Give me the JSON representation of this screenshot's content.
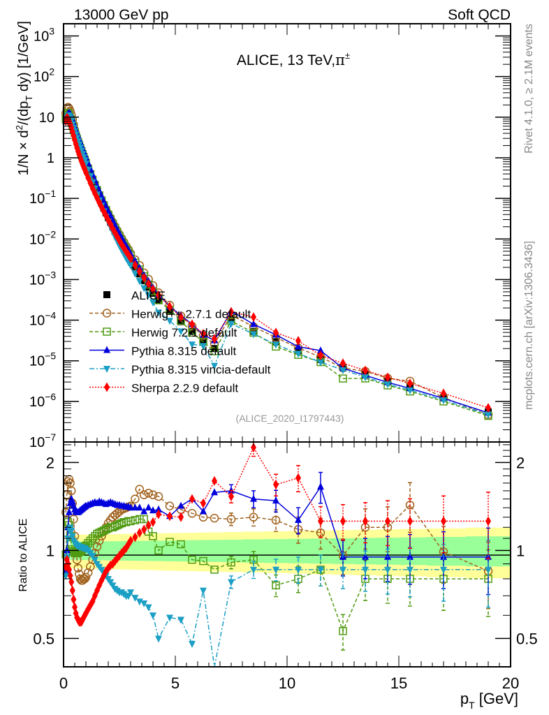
{
  "header": {
    "left": "13000 GeV pp",
    "right": "Soft QCD"
  },
  "side_labels": {
    "rivet": "Rivet 4.1.0, ≥ 2.1M events",
    "mcplots": "mcplots.cern.ch [arXiv:1306.3436]"
  },
  "chart_data": [
    {
      "type": "scatter",
      "panel": "main",
      "title": "ALICE, 13 TeV,π±",
      "title_main": "ALICE, 13 TeV,",
      "title_particle": "π",
      "title_sup": "±",
      "analysis_id": "(ALICE_2020_I1797443)",
      "xlabel": "p_T [GeV]",
      "ylabel": "1/N × d²/(dp_T dy) [1/GeV]",
      "yscale": "log",
      "xlim": [
        0,
        20
      ],
      "ylim": [
        1e-07,
        2000
      ],
      "x_ticks": [
        0,
        5,
        10,
        15,
        20
      ],
      "y_tick_labels": [
        "10^3",
        "10^2",
        "10",
        "1",
        "10^-1",
        "10^-2",
        "10^-3",
        "10^-4",
        "10^-5",
        "10^-6",
        "10^-7"
      ],
      "legend_position": "lower-left",
      "x": [
        0.1,
        0.15,
        0.2,
        0.25,
        0.3,
        0.35,
        0.4,
        0.45,
        0.5,
        0.55,
        0.6,
        0.65,
        0.7,
        0.75,
        0.8,
        0.85,
        0.9,
        0.95,
        1.0,
        1.1,
        1.2,
        1.3,
        1.4,
        1.5,
        1.6,
        1.7,
        1.8,
        1.9,
        2.0,
        2.1,
        2.2,
        2.3,
        2.4,
        2.5,
        2.6,
        2.7,
        2.8,
        2.9,
        3.0,
        3.2,
        3.4,
        3.6,
        3.8,
        4.0,
        4.25,
        4.75,
        5.25,
        5.75,
        6.25,
        6.75,
        7.5,
        8.5,
        9.5,
        10.5,
        11.5,
        12.5,
        13.5,
        14.5,
        15.5,
        17.0,
        19.0
      ],
      "series": [
        {
          "name": "ALICE",
          "color": "#000000",
          "marker": "square",
          "line": "none",
          "values": [
            9.2,
            10.5,
            10.2,
            9.3,
            8.2,
            7.1,
            6.0,
            5.1,
            4.3,
            3.6,
            3.0,
            2.5,
            2.1,
            1.75,
            1.46,
            1.22,
            1.02,
            0.86,
            0.72,
            0.51,
            0.365,
            0.263,
            0.191,
            0.14,
            0.103,
            0.077,
            0.058,
            0.044,
            0.0335,
            0.0258,
            0.0199,
            0.0155,
            0.0121,
            0.0095,
            0.0075,
            0.006,
            0.0048,
            0.0039,
            0.0031,
            0.00205,
            0.00138,
            0.00094,
            0.00065,
            0.00046,
            0.00031,
            0.000165,
            9.2e-05,
            5.3e-05,
            3.2e-05,
            2e-05,
            0.000105,
            5.3e-05,
            2.95e-05,
            1.75e-05,
            1.08e-05,
            6.9e-06,
            4.6e-06,
            3.1e-06,
            2.2e-06,
            1.25e-06,
            5.5e-07
          ]
        },
        {
          "name": "Herwig++ 2.7.1 default",
          "color": "#a0611c",
          "marker": "open-circle",
          "line": "dashed",
          "ratio": [
            1.35,
            1.55,
            1.72,
            1.75,
            1.7,
            1.6,
            1.45,
            1.28,
            1.12,
            1.0,
            0.93,
            0.87,
            0.83,
            0.8,
            0.79,
            0.79,
            0.8,
            0.8,
            0.81,
            0.84,
            0.88,
            0.93,
            0.98,
            1.03,
            1.08,
            1.12,
            1.16,
            1.2,
            1.24,
            1.27,
            1.3,
            1.32,
            1.34,
            1.36,
            1.38,
            1.39,
            1.4,
            1.41,
            1.42,
            1.5,
            1.62,
            1.55,
            1.57,
            1.55,
            1.53,
            1.42,
            1.38,
            1.34,
            1.3,
            1.29,
            1.28,
            1.3,
            1.27,
            1.18,
            1.15,
            0.96,
            1.2,
            1.2,
            1.43,
            0.99,
            0.85
          ]
        },
        {
          "name": "Herwig 7.2.1 default",
          "color": "#4f9a11",
          "marker": "open-square",
          "line": "dashed",
          "ratio": [
            0.97,
            1.15,
            1.25,
            1.22,
            1.12,
            1.05,
            1.01,
            0.99,
            0.98,
            0.98,
            0.98,
            0.98,
            0.99,
            0.99,
            1.0,
            1.01,
            1.02,
            1.03,
            1.04,
            1.06,
            1.08,
            1.1,
            1.12,
            1.14,
            1.15,
            1.16,
            1.17,
            1.18,
            1.19,
            1.2,
            1.2,
            1.21,
            1.22,
            1.23,
            1.24,
            1.25,
            1.25,
            1.26,
            1.26,
            1.27,
            1.28,
            1.28,
            1.16,
            1.12,
            1.0,
            1.07,
            1.05,
            0.93,
            0.92,
            0.86,
            0.91,
            0.93,
            0.76,
            0.8,
            0.86,
            0.53,
            0.8,
            0.8,
            0.8,
            0.8,
            0.8
          ]
        },
        {
          "name": "Pythia 8.315 default",
          "color": "#0000dd",
          "marker": "triangle-up",
          "line": "solid",
          "ratio": [
            0.85,
            1.0,
            1.2,
            1.35,
            1.45,
            1.5,
            1.47,
            1.42,
            1.38,
            1.36,
            1.35,
            1.35,
            1.36,
            1.37,
            1.38,
            1.39,
            1.4,
            1.41,
            1.42,
            1.43,
            1.44,
            1.45,
            1.46,
            1.45,
            1.47,
            1.46,
            1.45,
            1.44,
            1.45,
            1.46,
            1.45,
            1.44,
            1.43,
            1.43,
            1.42,
            1.42,
            1.41,
            1.41,
            1.4,
            1.4,
            1.4,
            1.36,
            1.4,
            1.37,
            1.38,
            1.31,
            1.42,
            1.5,
            1.36,
            1.58,
            1.6,
            1.5,
            1.48,
            1.27,
            1.65,
            0.95,
            0.95,
            0.95,
            0.95,
            0.95,
            0.95
          ]
        },
        {
          "name": "Pythia 8.315 vincia-default",
          "color": "#1b9fc5",
          "marker": "triangle-down",
          "line": "dash-dot",
          "ratio": [
            0.82,
            0.95,
            1.1,
            1.18,
            1.2,
            1.17,
            1.12,
            1.08,
            1.06,
            1.05,
            1.04,
            1.04,
            1.03,
            1.03,
            1.03,
            1.02,
            1.02,
            1.02,
            1.01,
            1.0,
            0.98,
            0.96,
            0.93,
            0.9,
            0.88,
            0.86,
            0.84,
            0.82,
            0.8,
            0.78,
            0.76,
            0.74,
            0.73,
            0.72,
            0.72,
            0.71,
            0.7,
            0.7,
            0.72,
            0.69,
            0.67,
            0.66,
            0.64,
            0.6,
            0.5,
            0.59,
            0.58,
            0.48,
            0.73,
            0.38,
            0.78,
            0.86,
            0.86,
            0.86,
            0.86,
            0.86,
            0.86,
            0.86,
            0.86,
            0.86,
            0.86
          ]
        },
        {
          "name": "Sherpa 2.2.9 default",
          "color": "#ff0000",
          "marker": "diamond",
          "line": "dotted",
          "ratio": [
            0.88,
            0.93,
            0.9,
            0.86,
            0.82,
            0.78,
            0.73,
            0.68,
            0.64,
            0.61,
            0.59,
            0.58,
            0.57,
            0.57,
            0.57,
            0.58,
            0.59,
            0.6,
            0.61,
            0.63,
            0.65,
            0.67,
            0.7,
            0.73,
            0.76,
            0.79,
            0.82,
            0.85,
            0.87,
            0.89,
            0.9,
            0.92,
            0.94,
            0.96,
            0.98,
            1.0,
            1.02,
            1.05,
            1.08,
            1.11,
            1.15,
            1.18,
            1.22,
            1.25,
            1.33,
            1.31,
            1.3,
            1.5,
            1.45,
            1.73,
            1.53,
            2.25,
            1.68,
            1.77,
            1.26,
            1.26,
            1.26,
            1.26,
            1.26,
            1.26,
            1.26
          ]
        }
      ]
    },
    {
      "type": "scatter",
      "panel": "ratio",
      "ylabel": "Ratio to ALICE",
      "xlabel": "p_T [GeV]",
      "yscale": "log",
      "xlim": [
        0,
        20
      ],
      "ylim": [
        0.4,
        2.35
      ],
      "y_ticks": [
        0.5,
        1,
        2
      ],
      "y_tick_labels": [
        "0.5",
        "1",
        "2"
      ],
      "x_ticks": [
        0,
        5,
        10,
        15,
        20
      ],
      "x_tick_labels": [
        "0",
        "5",
        "10",
        "15",
        "20"
      ],
      "reference_line": 1,
      "bands": [
        {
          "name": "stat+syst outer",
          "color": "#ffff99",
          "halfwidth_at_low_pt": 0.13,
          "halfwidth_at_high_pt": 0.2
        },
        {
          "name": "stat inner",
          "color": "#99ff99",
          "halfwidth_at_low_pt": 0.07,
          "halfwidth_at_high_pt": 0.12
        }
      ],
      "ratio_x": [
        0.1,
        0.15,
        0.2,
        0.25,
        0.3,
        0.35,
        0.4,
        0.45,
        0.5,
        0.55,
        0.6,
        0.65,
        0.7,
        0.75,
        0.8,
        0.85,
        0.9,
        0.95,
        1.0,
        1.1,
        1.2,
        1.3,
        1.4,
        1.5,
        1.6,
        1.7,
        1.8,
        1.9,
        2.0,
        2.1,
        2.2,
        2.3,
        2.4,
        2.5,
        2.6,
        2.7,
        2.8,
        2.9,
        3.0,
        3.2,
        3.4,
        3.6,
        3.8,
        4.0,
        4.25,
        4.75,
        5.25,
        5.75,
        6.25,
        6.75,
        7.5,
        8.5,
        9.5,
        10.5,
        11.5,
        12.5,
        13.5,
        14.5,
        15.5,
        17.0,
        19.0
      ]
    }
  ]
}
